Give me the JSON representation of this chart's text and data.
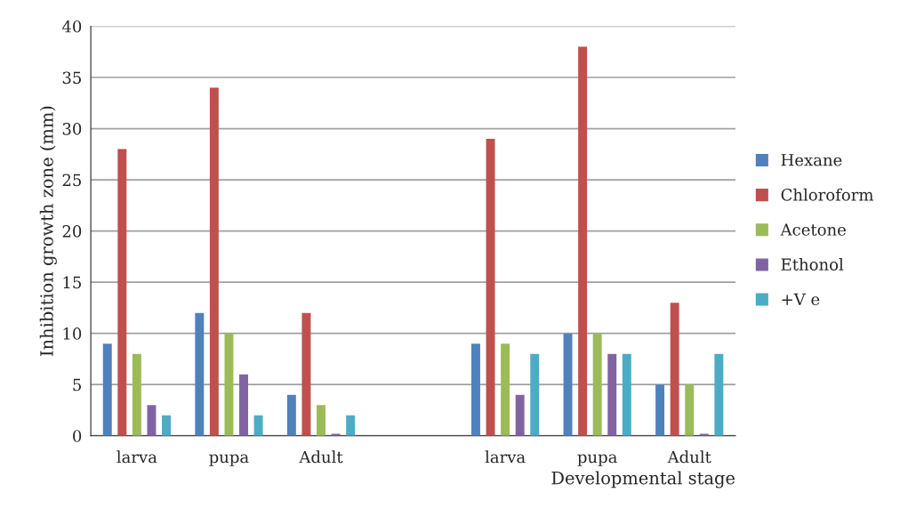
{
  "chart_data": {
    "type": "bar",
    "xlabel": "Developmental stage",
    "ylabel": "Inhibition growth zone (mm)",
    "categories": [
      "larva",
      "pupa",
      "Adult",
      null,
      "larva",
      "pupa",
      "Adult"
    ],
    "series": [
      {
        "name": "Hexane",
        "color": "#4f81bd",
        "values": [
          9,
          12,
          4,
          null,
          9,
          10,
          5
        ]
      },
      {
        "name": "Chloroform",
        "color": "#c0504d",
        "values": [
          28,
          34,
          12,
          null,
          29,
          38,
          13
        ]
      },
      {
        "name": "Acetone",
        "color": "#9bbb59",
        "values": [
          8,
          10,
          3,
          null,
          9,
          10,
          5
        ]
      },
      {
        "name": "Ethonol",
        "color": "#8064a2",
        "values": [
          3,
          6,
          0.2,
          null,
          4,
          8,
          0.2
        ]
      },
      {
        "name": "+V e",
        "color": "#4bacc6",
        "values": [
          2,
          2,
          2,
          null,
          8,
          8,
          8
        ]
      }
    ],
    "ylim": [
      0,
      40
    ],
    "yticks": [
      0,
      5,
      10,
      15,
      20,
      25,
      30,
      35,
      40
    ],
    "grid": "y",
    "legend": "right"
  }
}
